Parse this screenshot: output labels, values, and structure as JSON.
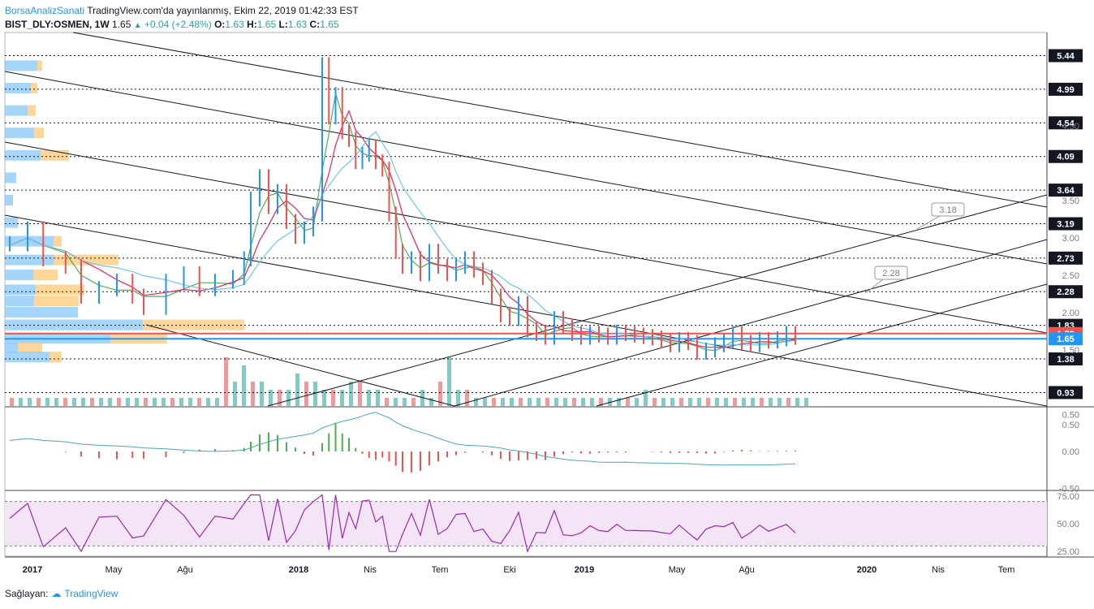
{
  "header": {
    "brand": "BorsaAnalizSanati",
    "publish": "TradingView.com'da yayınlanmış, Ekim 22, 2019 01:42:33 EST",
    "symbol": "BIST_DLY:OSMEN, 1W",
    "last": "1.65",
    "change": "+0.04 (+2.48%)",
    "o_label": "O:",
    "o_value": "1.63",
    "h_label": "H:",
    "h_value": "1.65",
    "l_label": "L:",
    "l_value": "1.63",
    "c_label": "C:",
    "c_value": "1.65"
  },
  "footer": {
    "provider": "Sağlayan:",
    "logo_text": "TradingView"
  },
  "colors": {
    "up": "#2196f3",
    "down": "#ef5350",
    "ma_fast": "#4caf50",
    "ma_mid": "#e91e63",
    "ma_slow": "#6ec6e6",
    "rsi": "#9c27b0",
    "rsi_band": "#f3e5f5"
  },
  "chart_data": [
    {
      "type": "candlestick",
      "name": "main",
      "x_ticks": [
        "2017",
        "May",
        "Ağu",
        "2018",
        "Nis",
        "Tem",
        "Eki",
        "2019",
        "May",
        "Ağu",
        "2020",
        "Nis",
        "Tem"
      ],
      "y_ticks": [
        "4.50",
        "3.50",
        "3.00",
        "2.50",
        "2.00",
        "1.50",
        "0.50"
      ],
      "ylim": [
        0.75,
        5.75
      ],
      "level_lines": [
        "5.44",
        "4.99",
        "4.54",
        "4.09",
        "3.64",
        "3.19",
        "2.73",
        "2.28",
        "1.83",
        "1.38",
        "0.93"
      ],
      "highlight_levels": [
        {
          "value": "1.72",
          "color": "#ef5350"
        },
        {
          "value": "1.65",
          "color": "#2196f3"
        }
      ],
      "annotations": [
        "3.18",
        "2.28"
      ],
      "price": [
        [
          0,
          2.9
        ],
        [
          8,
          3.1
        ],
        [
          15,
          2.7
        ],
        [
          25,
          2.6
        ],
        [
          32,
          2.2
        ],
        [
          40,
          2.3
        ],
        [
          48,
          2.4
        ],
        [
          55,
          2.2
        ],
        [
          60,
          2.05
        ],
        [
          70,
          2.4
        ],
        [
          78,
          2.5
        ],
        [
          85,
          2.3
        ],
        [
          92,
          2.4
        ],
        [
          100,
          2.45
        ],
        [
          105,
          2.7
        ],
        [
          108,
          3.5
        ],
        [
          112,
          3.8
        ],
        [
          116,
          3.4
        ],
        [
          120,
          3.6
        ],
        [
          124,
          3.2
        ],
        [
          128,
          3.0
        ],
        [
          132,
          3.1
        ],
        [
          136,
          3.3
        ],
        [
          140,
          5.3
        ],
        [
          143,
          4.6
        ],
        [
          146,
          4.9
        ],
        [
          149,
          4.4
        ],
        [
          152,
          4.3
        ],
        [
          155,
          4.0
        ],
        [
          158,
          4.1
        ],
        [
          161,
          4.2
        ],
        [
          164,
          4.0
        ],
        [
          167,
          3.9
        ],
        [
          170,
          3.3
        ],
        [
          173,
          2.8
        ],
        [
          176,
          2.6
        ],
        [
          180,
          2.7
        ],
        [
          184,
          2.5
        ],
        [
          188,
          2.8
        ],
        [
          192,
          2.6
        ],
        [
          196,
          2.5
        ],
        [
          200,
          2.6
        ],
        [
          204,
          2.7
        ],
        [
          208,
          2.55
        ],
        [
          212,
          2.45
        ],
        [
          216,
          2.2
        ],
        [
          220,
          1.95
        ],
        [
          224,
          1.9
        ],
        [
          228,
          2.1
        ],
        [
          232,
          1.75
        ],
        [
          236,
          1.7
        ],
        [
          240,
          1.65
        ],
        [
          244,
          1.9
        ],
        [
          248,
          1.8
        ],
        [
          252,
          1.7
        ],
        [
          256,
          1.65
        ],
        [
          260,
          1.7
        ],
        [
          264,
          1.68
        ],
        [
          268,
          1.65
        ],
        [
          272,
          1.72
        ],
        [
          276,
          1.7
        ],
        [
          280,
          1.68
        ],
        [
          284,
          1.66
        ],
        [
          288,
          1.64
        ],
        [
          292,
          1.6
        ],
        [
          296,
          1.55
        ],
        [
          300,
          1.62
        ],
        [
          304,
          1.58
        ],
        [
          308,
          1.45
        ],
        [
          312,
          1.48
        ],
        [
          316,
          1.55
        ],
        [
          320,
          1.6
        ],
        [
          324,
          1.7
        ],
        [
          328,
          1.58
        ],
        [
          332,
          1.55
        ],
        [
          336,
          1.62
        ],
        [
          340,
          1.6
        ],
        [
          344,
          1.63
        ],
        [
          348,
          1.7
        ],
        [
          352,
          1.65
        ]
      ],
      "volume": [
        1,
        1,
        1,
        1,
        1,
        1,
        1,
        1,
        1,
        1,
        1,
        1,
        1,
        1,
        1,
        1,
        1,
        1,
        1,
        1,
        1,
        1,
        1,
        1,
        6,
        3,
        5,
        3,
        3,
        2,
        2,
        2,
        4,
        3,
        3,
        2,
        2,
        2,
        3,
        3,
        2,
        2,
        1,
        1,
        1,
        1,
        2,
        1,
        3,
        6,
        2,
        2,
        1,
        1,
        1,
        1,
        1,
        1,
        1,
        1,
        1,
        1,
        1,
        1,
        1,
        1,
        1,
        1,
        1,
        1,
        1,
        2,
        1,
        1,
        1,
        1,
        1,
        1,
        1,
        1,
        1,
        1,
        1,
        1,
        1,
        1,
        1,
        1,
        1,
        1
      ]
    },
    {
      "type": "histogram",
      "name": "macd",
      "y_ticks": [
        "0.50",
        "0.00",
        "-0.50"
      ],
      "ylim": [
        -0.75,
        0.55
      ]
    },
    {
      "type": "line",
      "name": "rsi",
      "y_ticks": [
        "75.00",
        "50.00",
        "25.00"
      ],
      "ylim": [
        20,
        80
      ]
    }
  ]
}
